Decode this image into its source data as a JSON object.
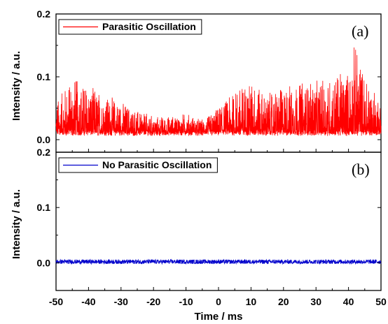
{
  "chart_data": {
    "type": "line",
    "shared_x": {
      "label": "Time / ms",
      "range": [
        -50,
        50
      ],
      "ticks": [
        -50,
        -40,
        -30,
        -20,
        -10,
        0,
        10,
        20,
        30,
        40,
        50
      ]
    },
    "panels": [
      {
        "id": "a",
        "tag": "(a)",
        "ylabel": "Intensity / a.u.",
        "ylim": [
          -0.02,
          0.2
        ],
        "yticks": [
          "0.0",
          "0.1",
          "0.2"
        ],
        "legend_position": "top-left",
        "series": [
          {
            "name": "Parasitic Oscillation",
            "color": "#ff0000",
            "baseline": 0.01,
            "envelope_x": [
              -50,
              -45,
              -40,
              -35,
              -30,
              -25,
              -20,
              -15,
              -10,
              -5,
              0,
              5,
              10,
              15,
              20,
              25,
              30,
              35,
              40,
              42,
              45,
              48,
              50
            ],
            "envelope_y": [
              0.06,
              0.1,
              0.085,
              0.07,
              0.06,
              0.045,
              0.035,
              0.035,
              0.04,
              0.03,
              0.05,
              0.08,
              0.095,
              0.07,
              0.085,
              0.09,
              0.09,
              0.1,
              0.11,
              0.155,
              0.1,
              0.075,
              0.07
            ]
          }
        ]
      },
      {
        "id": "b",
        "tag": "(b)",
        "ylabel": "Intensity / a.u.",
        "ylim": [
          -0.05,
          0.2
        ],
        "yticks": [
          "0.0",
          "0.1",
          "0.2"
        ],
        "legend_position": "top-left",
        "series": [
          {
            "name": "No Parasitic Oscillation",
            "color": "#0000cc",
            "baseline": 0.002,
            "envelope_x": [
              -50,
              0,
              50
            ],
            "envelope_y": [
              0.004,
              0.004,
              0.004
            ]
          }
        ]
      }
    ]
  }
}
